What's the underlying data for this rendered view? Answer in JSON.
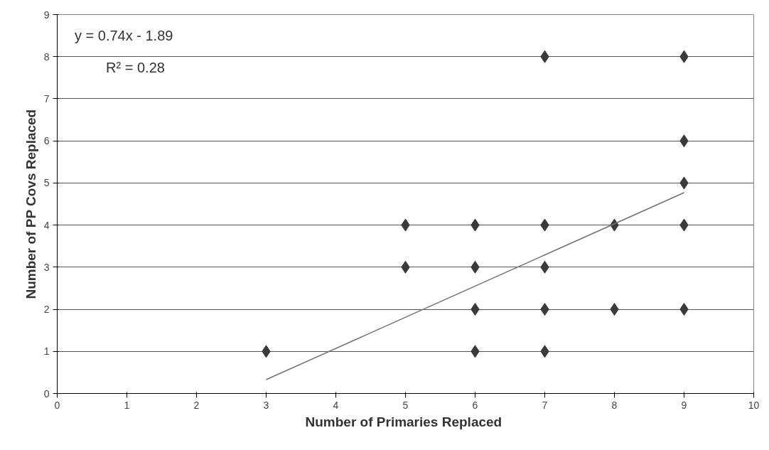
{
  "chart_data": {
    "type": "scatter",
    "xlabel": "Number of  Primaries Replaced",
    "ylabel": "Number of PP Covs Replaced",
    "xlim": [
      0,
      10
    ],
    "ylim": [
      0,
      9
    ],
    "xticks": [
      0,
      1,
      2,
      3,
      4,
      5,
      6,
      7,
      8,
      9,
      10
    ],
    "yticks": [
      0,
      1,
      2,
      3,
      4,
      5,
      6,
      7,
      8,
      9
    ],
    "grid": "y",
    "annotations": [
      "y = 0.74x - 1.89",
      "R² = 0.28"
    ],
    "series": [
      {
        "marker": "diamond",
        "color": "#3a3a3a",
        "x": [
          3,
          5,
          5,
          6,
          6,
          6,
          6,
          7,
          7,
          7,
          7,
          7,
          8,
          8,
          9,
          9,
          9,
          9,
          9
        ],
        "values": [
          1,
          4,
          3,
          4,
          3,
          2,
          1,
          8,
          4,
          3,
          2,
          1,
          4,
          2,
          8,
          6,
          5,
          4,
          2
        ]
      },
      {
        "type": "line",
        "marker": "none",
        "color": "#707070",
        "x": [
          3,
          9
        ],
        "values": [
          0.33,
          4.77
        ]
      }
    ]
  }
}
